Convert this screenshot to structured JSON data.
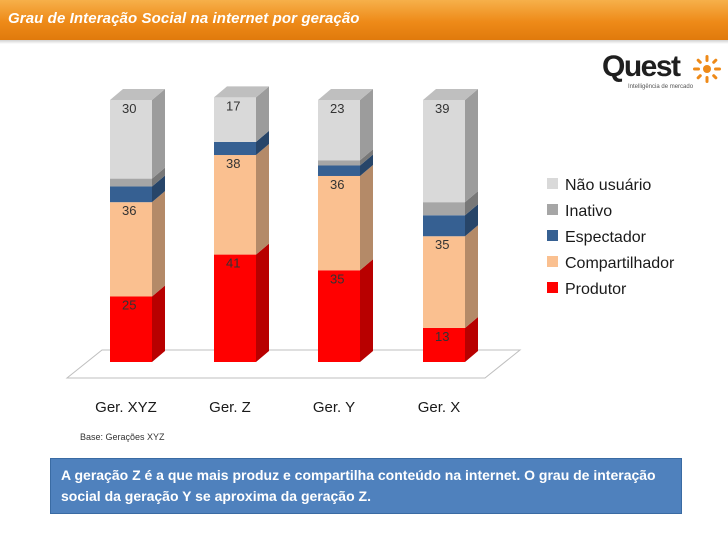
{
  "header": {
    "title": "Grau de Interação Social na internet por geração"
  },
  "logo": {
    "name": "Quest",
    "tagline": "Intelligência de mercado"
  },
  "chart_data": {
    "type": "bar",
    "stacked": true,
    "categories": [
      "Ger. XYZ",
      "Ger. Z",
      "Ger. Y",
      "Ger. X"
    ],
    "series": [
      {
        "name": "Produtor",
        "color": "#ff0000",
        "values": [
          25,
          41,
          35,
          13
        ],
        "labels": [
          "25",
          "41",
          "35",
          "13"
        ]
      },
      {
        "name": "Compartilhador",
        "color": "#fac090",
        "values": [
          36,
          38,
          36,
          35
        ],
        "labels": [
          "36",
          "38",
          "36",
          "35"
        ]
      },
      {
        "name": "Espectador",
        "color": "#366092",
        "values": [
          6,
          5,
          4,
          8
        ],
        "labels": [
          "",
          "",
          "",
          ""
        ]
      },
      {
        "name": "Inativo",
        "color": "#a6a6a6",
        "values": [
          3,
          0,
          2,
          5
        ],
        "labels": [
          "",
          "",
          "",
          ""
        ]
      },
      {
        "name": "Não usuário",
        "color": "#d9d9d9",
        "values": [
          30,
          17,
          23,
          39
        ],
        "labels": [
          "30",
          "17",
          "23",
          "39"
        ]
      }
    ],
    "legend_order": [
      "Não usuário",
      "Inativo",
      "Espectador",
      "Compartilhador",
      "Produtor"
    ],
    "legend_position": "right",
    "ylim": [
      0,
      100
    ],
    "grid": false
  },
  "footnote": "Base: Gerações XYZ",
  "callout": "A geração Z é a que mais produz e compartilha conteúdo na internet. O grau de interação social da geração Y se aproxima da geração Z."
}
